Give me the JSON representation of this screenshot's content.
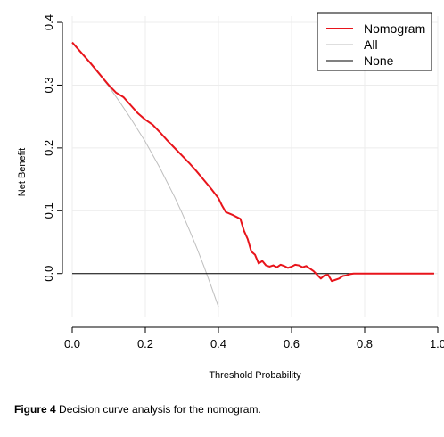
{
  "chart_data": {
    "type": "line",
    "xlabel": "Threshold Probability",
    "ylabel": "Net Benefit",
    "xlim": [
      0.0,
      1.0
    ],
    "ylim": [
      -0.07,
      0.41
    ],
    "xticks": [
      "0.0",
      "0.2",
      "0.4",
      "0.6",
      "0.8",
      "1.0"
    ],
    "yticks": [
      "0.0",
      "0.1",
      "0.2",
      "0.3",
      "0.4"
    ],
    "grid": true,
    "legend_position": "top-right",
    "series": [
      {
        "name": "Nomogram",
        "color": "#e8141b",
        "x": [
          0.0,
          0.05,
          0.1,
          0.12,
          0.14,
          0.16,
          0.18,
          0.2,
          0.22,
          0.24,
          0.26,
          0.28,
          0.3,
          0.32,
          0.34,
          0.36,
          0.38,
          0.4,
          0.41,
          0.42,
          0.44,
          0.46,
          0.47,
          0.48,
          0.49,
          0.5,
          0.51,
          0.52,
          0.53,
          0.54,
          0.55,
          0.56,
          0.57,
          0.58,
          0.59,
          0.6,
          0.61,
          0.62,
          0.63,
          0.64,
          0.65,
          0.66,
          0.67,
          0.68,
          0.69,
          0.7,
          0.71,
          0.72,
          0.73,
          0.74,
          0.75,
          0.76,
          0.77,
          0.78,
          0.8,
          0.85,
          0.9,
          0.95,
          0.99
        ],
        "y": [
          0.368,
          0.335,
          0.3,
          0.288,
          0.281,
          0.268,
          0.255,
          0.245,
          0.237,
          0.225,
          0.212,
          0.2,
          0.188,
          0.176,
          0.163,
          0.149,
          0.135,
          0.12,
          0.108,
          0.098,
          0.093,
          0.087,
          0.068,
          0.055,
          0.035,
          0.03,
          0.016,
          0.02,
          0.013,
          0.011,
          0.013,
          0.01,
          0.014,
          0.012,
          0.009,
          0.011,
          0.014,
          0.013,
          0.01,
          0.012,
          0.008,
          0.004,
          -0.002,
          -0.008,
          -0.003,
          -0.002,
          -0.012,
          -0.01,
          -0.008,
          -0.004,
          -0.003,
          -0.001,
          0.0,
          0.0,
          0.0,
          0.0,
          0.0,
          0.0,
          0.0
        ]
      },
      {
        "name": "All",
        "color": "#bebebe",
        "x": [
          0.0,
          0.05,
          0.1,
          0.13,
          0.16,
          0.2,
          0.24,
          0.28,
          0.3,
          0.32,
          0.34,
          0.36,
          0.38,
          0.4
        ],
        "y": [
          0.368,
          0.334,
          0.298,
          0.273,
          0.247,
          0.21,
          0.168,
          0.122,
          0.097,
          0.07,
          0.042,
          0.012,
          -0.02,
          -0.053
        ]
      },
      {
        "name": "None",
        "color": "#000000",
        "x": [
          0.0,
          0.99
        ],
        "y": [
          0.0,
          0.0
        ]
      }
    ]
  },
  "caption": {
    "label": "Figure 4",
    "text": " Decision curve analysis for the nomogram."
  }
}
